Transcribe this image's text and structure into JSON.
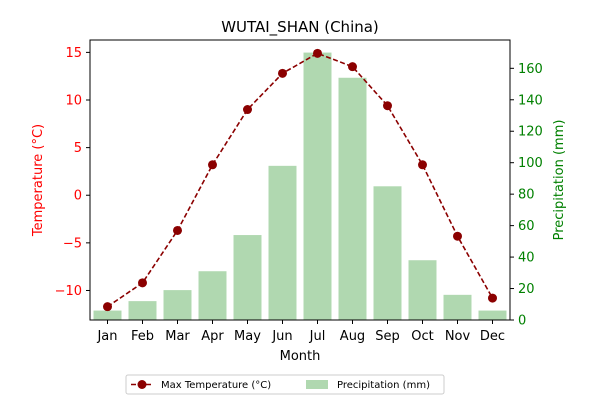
{
  "chart_data": {
    "type": "bar+line",
    "title": "WUTAI_SHAN (China)",
    "xlabel": "Month",
    "categories": [
      "Jan",
      "Feb",
      "Mar",
      "Apr",
      "May",
      "Jun",
      "Jul",
      "Aug",
      "Sep",
      "Oct",
      "Nov",
      "Dec"
    ],
    "series": [
      {
        "name": "Max Temperature (°C)",
        "type": "line",
        "axis": "left",
        "values": [
          -11.7,
          -9.2,
          -3.7,
          3.2,
          9.0,
          12.8,
          14.9,
          13.5,
          9.4,
          3.2,
          -4.3,
          -10.8
        ],
        "color": "#8b0000"
      },
      {
        "name": "Precipitation (mm)",
        "type": "bar",
        "axis": "right",
        "values": [
          6,
          12,
          19,
          31,
          54,
          98,
          170,
          154,
          85,
          38,
          16,
          6
        ],
        "color": "#b0d8b0"
      }
    ],
    "left_axis": {
      "label": "Temperature (°C)",
      "ylim": [
        -13.1,
        16.3
      ],
      "ticks": [
        -10,
        -5,
        0,
        5,
        10,
        15
      ],
      "color": "#ff0000"
    },
    "right_axis": {
      "label": "Precipitation (mm)",
      "ylim": [
        0,
        178
      ],
      "ticks": [
        0,
        20,
        40,
        60,
        80,
        100,
        120,
        140,
        160
      ],
      "color": "#008000"
    },
    "legend": {
      "position": "bottom-center",
      "ncol": 2
    },
    "grid": false
  }
}
